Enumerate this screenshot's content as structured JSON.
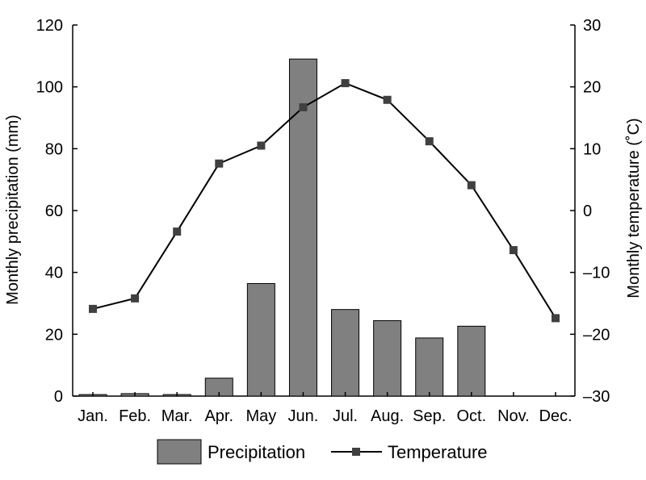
{
  "chart_data": {
    "type": "bar+line",
    "categories": [
      "Jan.",
      "Feb.",
      "Mar.",
      "Apr.",
      "May",
      "Jun.",
      "Jul.",
      "Aug.",
      "Sep.",
      "Oct.",
      "Nov.",
      "Dec."
    ],
    "series": [
      {
        "name": "Precipitation",
        "type": "bar",
        "axis": "left",
        "color": "#808080",
        "values": [
          0.5,
          0.8,
          0.5,
          5.8,
          36.4,
          109.0,
          28.0,
          24.4,
          18.8,
          22.6,
          0,
          0
        ]
      },
      {
        "name": "Temperature",
        "type": "line",
        "axis": "right",
        "color": "#000000",
        "marker_color": "#404040",
        "marker": "square",
        "values": [
          -15.9,
          -14.2,
          -3.4,
          7.6,
          10.5,
          16.7,
          20.6,
          17.9,
          11.2,
          4.1,
          -6.4,
          -17.4
        ]
      }
    ],
    "ylabel": "Monthly precipitation (mm)",
    "y2label": "Monthly temperature (˚C)",
    "ylim": [
      0,
      120
    ],
    "y2lim": [
      -30,
      30
    ],
    "yticks": [
      0,
      20,
      40,
      60,
      80,
      100,
      120
    ],
    "y2ticks": [
      -30,
      -20,
      -10,
      0,
      10,
      20,
      30
    ],
    "y2tick_labels": [
      "–30",
      "–20",
      "–10",
      "0",
      "10",
      "20",
      "30"
    ],
    "grid": false,
    "legend_position": "bottom"
  }
}
